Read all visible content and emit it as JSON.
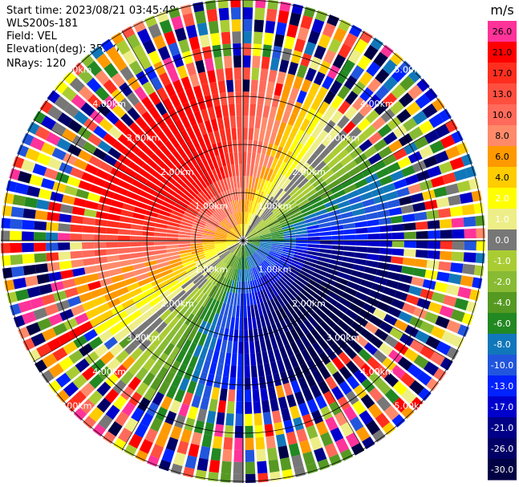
{
  "header": {
    "start_time": "Start time: 2023/08/21 03:45:48",
    "instrument": "WLS200s-181",
    "field": "Field: VEL",
    "elevation": "Elevation(deg): 35.30",
    "nrays": "NRays: 120"
  },
  "chart_data": {
    "type": "heatmap",
    "projection": "polar PPI",
    "colorbar_unit": "m/s",
    "colorbar_ticks": [
      "26.0",
      "21.0",
      "17.0",
      "13.0",
      "10.0",
      "8.0",
      "6.0",
      "4.0",
      "2.0",
      "1.0",
      "0.0",
      "-1.0",
      "-2.0",
      "-4.0",
      "-6.0",
      "-8.0",
      "-10.0",
      "-13.0",
      "-17.0",
      "-21.0",
      "-26.0",
      "-30.0"
    ],
    "colorbar_colors": [
      "#ff3399",
      "#ff0000",
      "#ff2e1e",
      "#ff4f3f",
      "#ff6a5a",
      "#ff8a6a",
      "#ff9900",
      "#ffcc00",
      "#ffff00",
      "#eeee88",
      "#777777",
      "#aacc33",
      "#88bb33",
      "#559922",
      "#228822",
      "#1177bb",
      "#2255dd",
      "#0022ff",
      "#0000cc",
      "#000088",
      "#000066",
      "#000044"
    ],
    "range_ring_labels": [
      "1.00km",
      "2.00km",
      "3.00km",
      "4.00km",
      "5.00km"
    ],
    "range_rings_km": [
      1,
      2,
      3,
      4,
      5
    ],
    "rays": 120,
    "wind_pattern": "warm (positive) velocities to the north-west, negative (blue) velocities to the south-east; noisy returns beyond about 3.5 km"
  }
}
